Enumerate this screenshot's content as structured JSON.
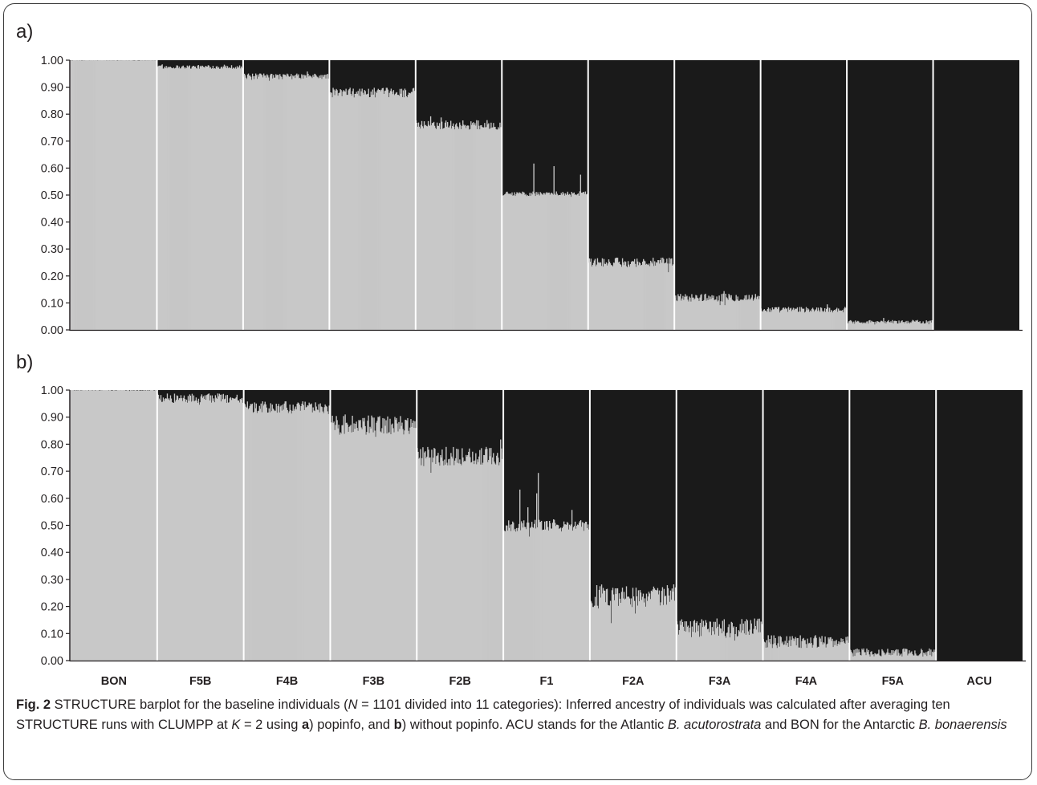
{
  "panels": {
    "a_label": "a)",
    "b_label": "b)"
  },
  "caption": {
    "fig_label": "Fig. 2",
    "text_1": " STRUCTURE barplot for the baseline individuals (",
    "italic_N": "N",
    "text_2": " = 1101 divided into 11 categories): Inferred ancestry of individuals was calculated after averaging ten STRUCTURE runs with CLUMPP at ",
    "italic_K": "K",
    "text_3": " = 2 using ",
    "bold_a": "a",
    "text_4": ") popinfo, and ",
    "bold_b": "b",
    "text_5": ") without popinfo. ACU stands for the Atlantic ",
    "italic_acu": "B. acutorostrata",
    "text_6": " and BON for the Antarctic ",
    "italic_bon": "B. bonaerensis"
  },
  "colors": {
    "cluster_light": "#c8c8c8",
    "cluster_dark": "#1a1a1a",
    "separator": "#ffffff"
  },
  "chart_data": [
    {
      "type": "bar",
      "panel": "a)",
      "categories": [
        "BON",
        "F5B",
        "F4B",
        "F3B",
        "F2B",
        "F1",
        "F2A",
        "F3A",
        "F4A",
        "F5A",
        "ACU"
      ],
      "mean_light_proportion": [
        1.0,
        0.975,
        0.94,
        0.88,
        0.76,
        0.505,
        0.25,
        0.12,
        0.075,
        0.03,
        0.0
      ],
      "within_group_spread": [
        0.002,
        0.012,
        0.018,
        0.03,
        0.03,
        0.015,
        0.03,
        0.025,
        0.018,
        0.012,
        0.0
      ],
      "series": [
        {
          "color": "#c8c8c8"
        },
        {
          "color": "#1a1a1a"
        }
      ],
      "y_ticks": [
        "0.00",
        "0.10",
        "0.20",
        "0.30",
        "0.40",
        "0.50",
        "0.60",
        "0.70",
        "0.80",
        "0.90",
        "1.00"
      ],
      "ylim": [
        0,
        1
      ],
      "grid": false
    },
    {
      "type": "bar",
      "panel": "b)",
      "categories": [
        "BON",
        "F5B",
        "F4B",
        "F3B",
        "F2B",
        "F1",
        "F2A",
        "F3A",
        "F4A",
        "F5A",
        "ACU"
      ],
      "mean_light_proportion": [
        1.0,
        0.97,
        0.935,
        0.87,
        0.755,
        0.5,
        0.24,
        0.12,
        0.07,
        0.03,
        0.0
      ],
      "within_group_spread": [
        0.003,
        0.03,
        0.04,
        0.06,
        0.06,
        0.04,
        0.07,
        0.06,
        0.04,
        0.025,
        0.0
      ],
      "series": [
        {
          "color": "#c8c8c8"
        },
        {
          "color": "#1a1a1a"
        }
      ],
      "y_ticks": [
        "0.00",
        "0.10",
        "0.20",
        "0.30",
        "0.40",
        "0.50",
        "0.60",
        "0.70",
        "0.80",
        "0.90",
        "1.00"
      ],
      "ylim": [
        0,
        1
      ],
      "grid": false
    }
  ]
}
